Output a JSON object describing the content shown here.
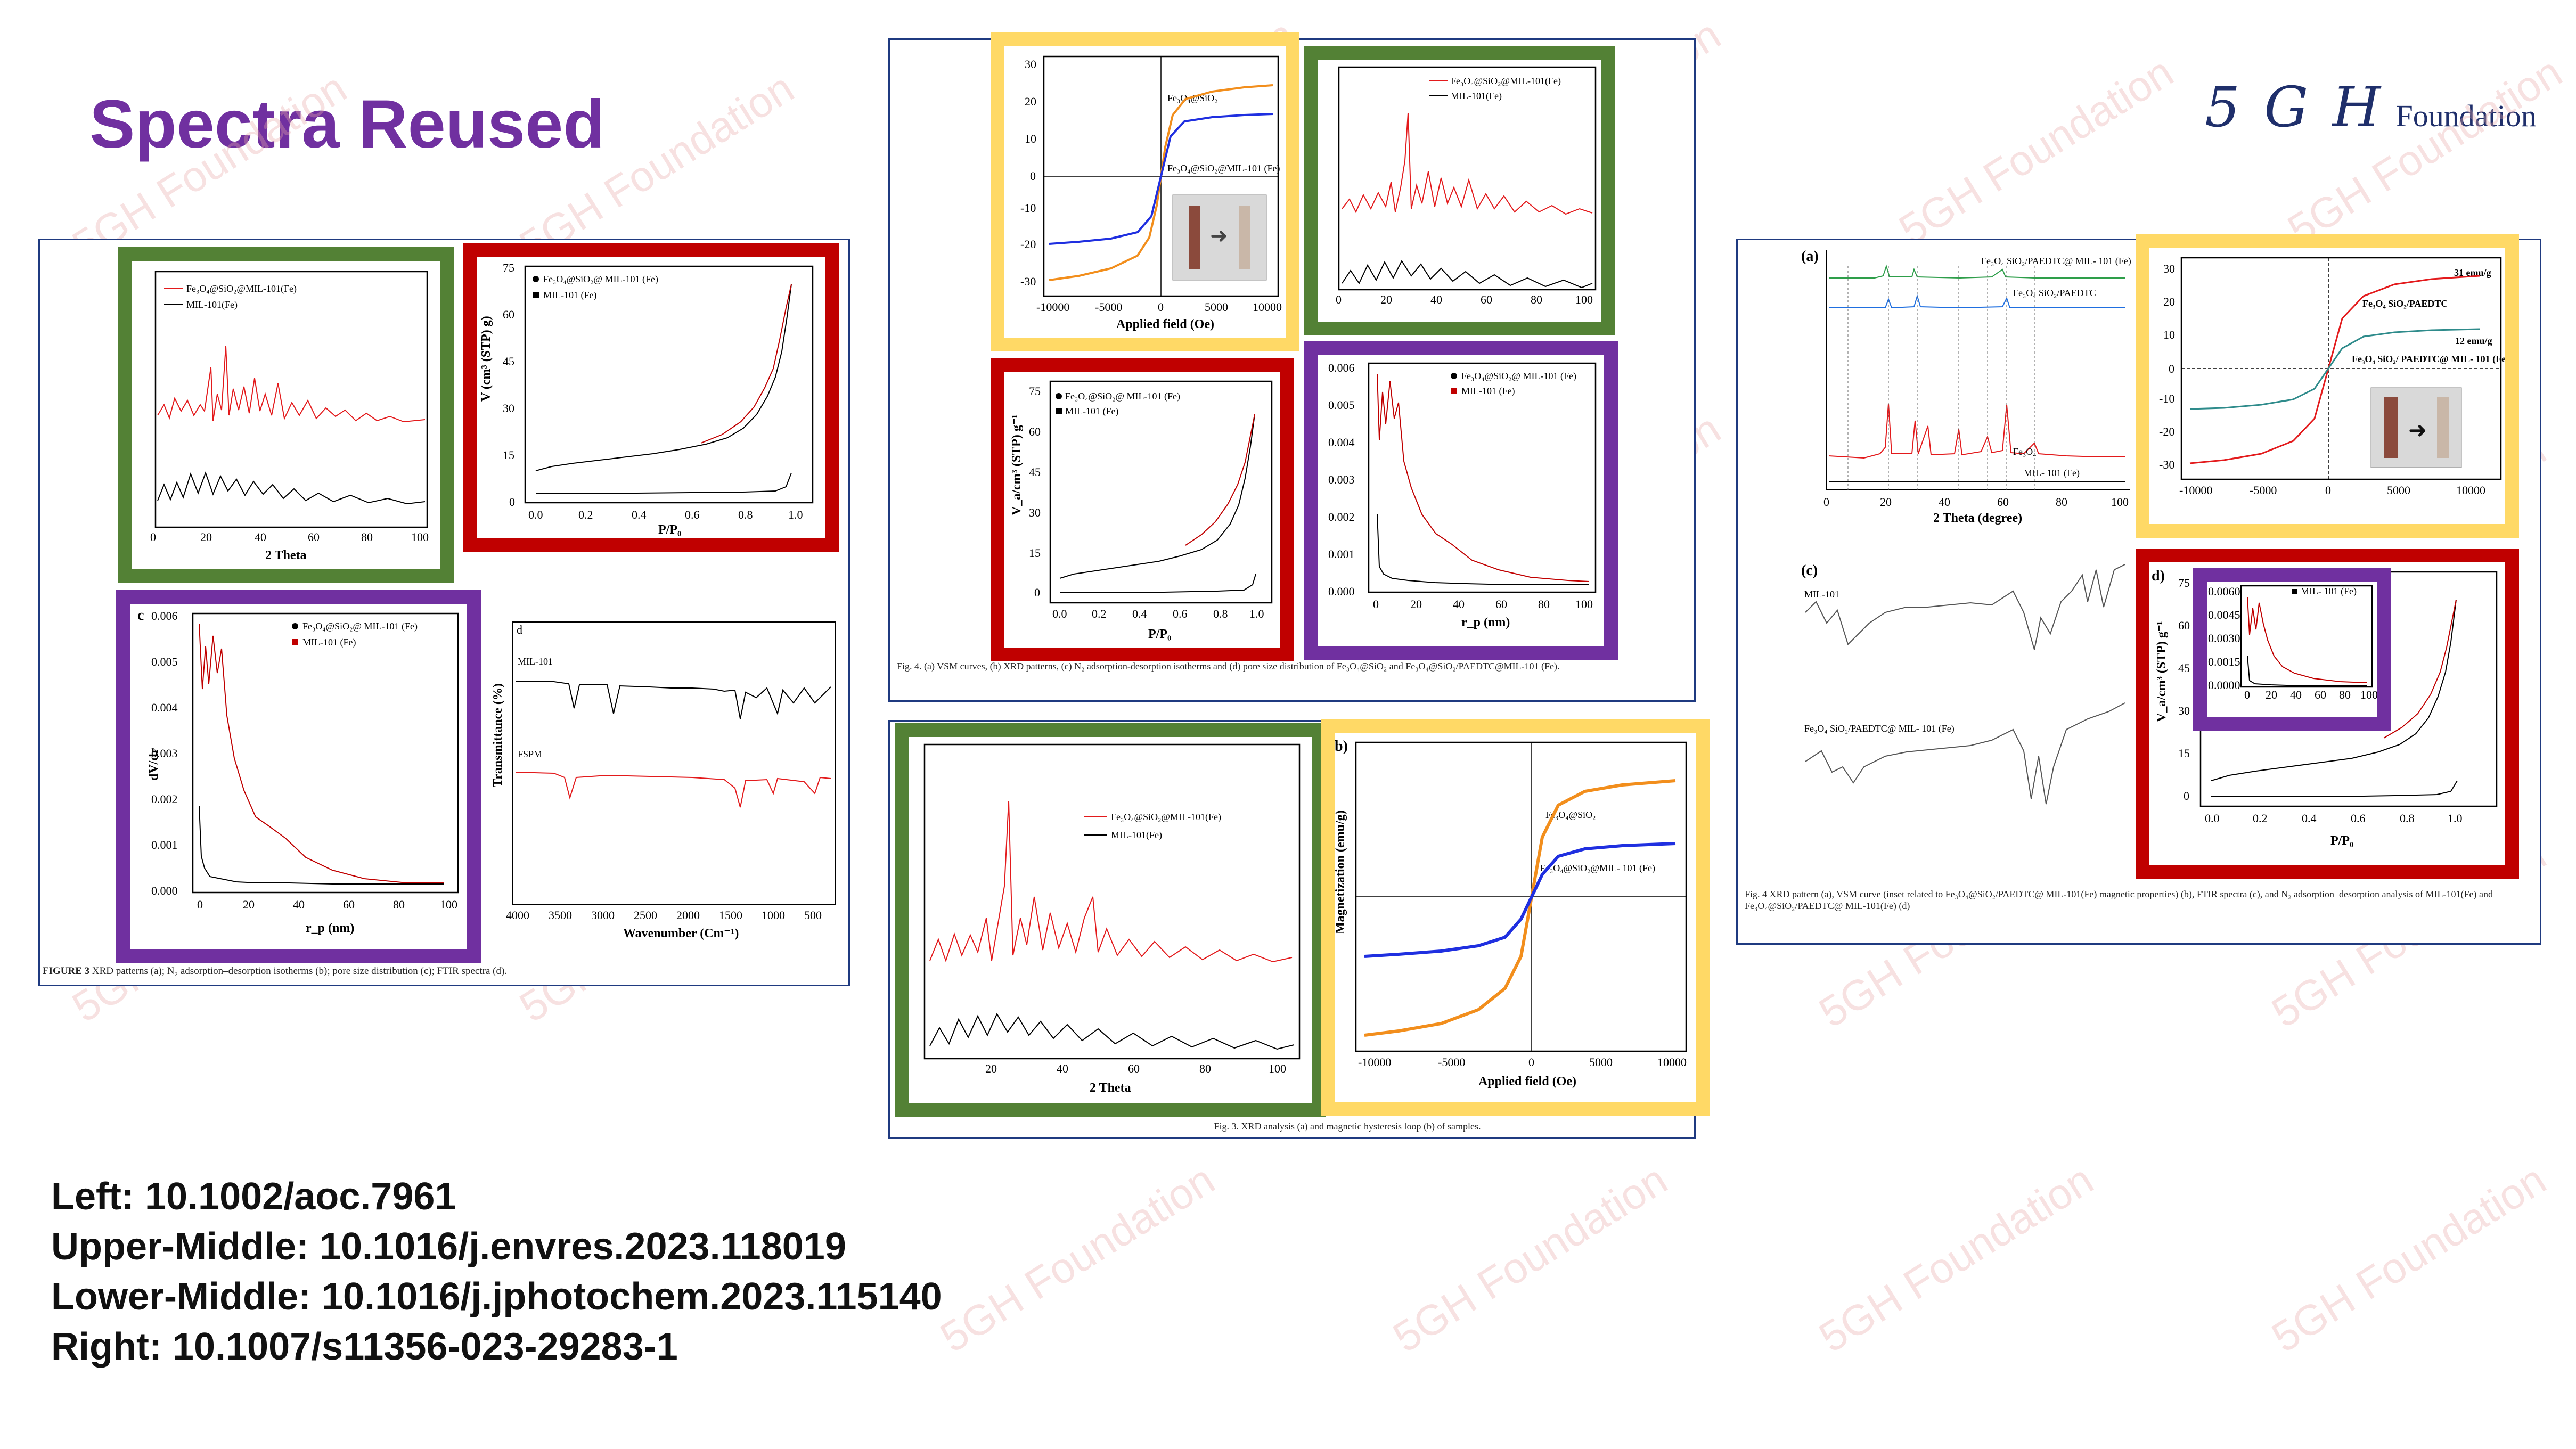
{
  "slide": {
    "title": "Spectra Reused",
    "logo_script": "5 G H",
    "logo_word": "Foundation",
    "watermark": "5GH Foundation"
  },
  "references": [
    "Left: 10.1002/aoc.7961",
    "Upper-Middle: 10.1016/j.envres.2023.118019",
    "Lower-Middle: 10.1016/j.jphotochem.2023.115140",
    "Right: 10.1007/s11356-023-29283-1"
  ],
  "highlight_colors": {
    "green": "#538135",
    "red": "#c00000",
    "purple": "#7030a0",
    "yellow": "#ffd966",
    "title": "#7030a0",
    "xrd_red": "#e31a1c",
    "orange": "#f28e1c",
    "blue": "#1f2fe0"
  },
  "left_panel": {
    "caption_label": "FIGURE 3",
    "caption_text": "XRD patterns (a); N₂ adsorption–desorption isotherms (b); pore size distribution (c); FTIR spectra (d).",
    "xrd": {
      "legend": [
        "Fe₃O₄@SiO₂@MIL-101(Fe)",
        "MIL-101(Fe)"
      ],
      "xlabel": "2 Theta",
      "xticks": [
        "0",
        "20",
        "40",
        "60",
        "80",
        "100"
      ]
    },
    "isotherm": {
      "legend": [
        "Fe₃O₄@SiO₂@ MIL-101 (Fe)",
        "MIL-101 (Fe)"
      ],
      "ylabel": "V (cm³ (STP) g)",
      "xlabel": "P/P₀",
      "yticks": [
        "0",
        "15",
        "30",
        "45",
        "60",
        "75"
      ],
      "xticks": [
        "0.0",
        "0.2",
        "0.4",
        "0.6",
        "0.8",
        "1.0"
      ]
    },
    "pore": {
      "panel_letter": "c",
      "legend": [
        "Fe₃O₄@SiO₂@ MIL-101 (Fe)",
        "MIL-101 (Fe)"
      ],
      "ylabel": "dV/dr",
      "xlabel": "r_p (nm)",
      "yticks": [
        "0.000",
        "0.001",
        "0.002",
        "0.003",
        "0.004",
        "0.005",
        "0.006"
      ],
      "xticks": [
        "0",
        "20",
        "40",
        "60",
        "80",
        "100"
      ]
    },
    "ftir": {
      "panel_letter": "d",
      "labels": [
        "MIL-101",
        "FSPM"
      ],
      "ylabel": "Transmittance (%)",
      "xlabel": "Wavenumber (Cm⁻¹)",
      "xticks": [
        "4000",
        "3500",
        "3000",
        "2500",
        "2000",
        "1500",
        "1000",
        "500"
      ]
    }
  },
  "upper_middle_panel": {
    "caption": "Fig. 4. (a) VSM curves, (b) XRD patterns, (c) N₂ adsorption-desorption isotherms and (d) pore size distribution of Fe₃O₄@SiO₂ and Fe₃O₄@SiO₂/PAEDTC@MIL-101 (Fe).",
    "vsm": {
      "labels": [
        "Fe₃O₄@SiO₂",
        "Fe₃O₄@SiO₂@MIL-101 (Fe)"
      ],
      "xlabel": "Applied field (Oe)",
      "yticks": [
        "-30",
        "-20",
        "-10",
        "0",
        "10",
        "20",
        "30"
      ],
      "xticks": [
        "-10000",
        "-5000",
        "0",
        "5000",
        "10000"
      ]
    },
    "xrd": {
      "legend": [
        "Fe₃O₄@SiO₂@MIL-101(Fe)",
        "MIL-101(Fe)"
      ],
      "xticks": [
        "0",
        "20",
        "40",
        "60",
        "80",
        "100"
      ]
    },
    "isotherm": {
      "legend": [
        "Fe₃O₄@SiO₂@ MIL-101 (Fe)",
        "MIL-101 (Fe)"
      ],
      "ylabel": "V_a/cm³ (STP) g⁻¹",
      "xlabel": "P/P₀",
      "yticks": [
        "0",
        "15",
        "30",
        "45",
        "60",
        "75"
      ],
      "xticks": [
        "0.0",
        "0.2",
        "0.4",
        "0.6",
        "0.8",
        "1.0"
      ]
    },
    "pore": {
      "legend": [
        "Fe₃O₄@SiO₂@ MIL-101 (Fe)",
        "MIL-101 (Fe)"
      ],
      "xlabel": "r_p (nm)",
      "yticks": [
        "0.000",
        "0.001",
        "0.002",
        "0.003",
        "0.004",
        "0.005",
        "0.006"
      ],
      "xticks": [
        "0",
        "20",
        "40",
        "60",
        "80",
        "100"
      ]
    }
  },
  "lower_middle_panel": {
    "caption": "Fig. 3. XRD analysis (a) and magnetic hysteresis loop (b) of samples.",
    "xrd": {
      "legend": [
        "Fe₃O₄@SiO₂@MIL-101(Fe)",
        "MIL-101(Fe)"
      ],
      "xlabel": "2 Theta",
      "xticks": [
        "20",
        "40",
        "60",
        "80",
        "100"
      ]
    },
    "vsm": {
      "panel_letter": "b)",
      "labels": [
        "Fe₃O₄@SiO₂",
        "Fe₃O₄@SiO₂@MIL- 101 (Fe)"
      ],
      "ylabel": "Magnetization (emu/g)",
      "xlabel": "Applied field (Oe)",
      "xticks": [
        "-10000",
        "-5000",
        "0",
        "5000",
        "10000"
      ]
    }
  },
  "right_panel": {
    "caption": "Fig. 4 XRD pattern (a), VSM curve (inset related to Fe₃O₄@SiO₂/PAEDTC@ MIL-101(Fe) magnetic properties) (b), FTIR spectra (c), and N₂ adsorption–desorption analysis of MIL-101(Fe) and Fe₃O₄@SiO₂/PAEDTC@ MIL-101(Fe) (d)",
    "xrd": {
      "panel_letter": "(a)",
      "labels": [
        "Fe₃O₄ SiO₂/PAEDTC@ MIL- 101 (Fe)",
        "Fe₃O₄ SiO₂/PAEDTC",
        "Fe₃O₄",
        "MIL- 101 (Fe)"
      ],
      "xlabel": "2 Theta (degree)",
      "xticks": [
        "0",
        "20",
        "40",
        "60",
        "80",
        "100"
      ]
    },
    "vsm": {
      "labels": [
        "31 emu/g",
        "Fe₃O₄ SiO₂/PAEDTC",
        "12 emu/g",
        "Fe₃O₄ SiO₂/ PAEDTC@ MIL- 101 (Fe)"
      ],
      "yticks": [
        "-30",
        "-20",
        "-10",
        "0",
        "10",
        "20",
        "30"
      ],
      "xticks": [
        "-10000",
        "-5000",
        "0",
        "5000",
        "10000"
      ]
    },
    "ftir": {
      "panel_letter": "(c)",
      "labels": [
        "MIL-101",
        "Fe₃O₄ SiO₂/PAEDTC@ MIL- 101 (Fe)"
      ]
    },
    "isotherm": {
      "panel_letter": "d)",
      "legend": [
        "MIL- 101 (Fe)"
      ],
      "ylabel": "V_a/cm³ (STP) g⁻¹",
      "xlabel": "P/P₀",
      "yticks": [
        "0",
        "15",
        "30",
        "45",
        "60",
        "75"
      ],
      "xticks": [
        "0.0",
        "0.2",
        "0.4",
        "0.6",
        "0.8",
        "1.0"
      ],
      "inset_yticks": [
        "0.0000",
        "0.0015",
        "0.0030",
        "0.0045",
        "0.0060"
      ],
      "inset_xticks": [
        "0",
        "20",
        "40",
        "60",
        "80",
        "100"
      ]
    }
  }
}
